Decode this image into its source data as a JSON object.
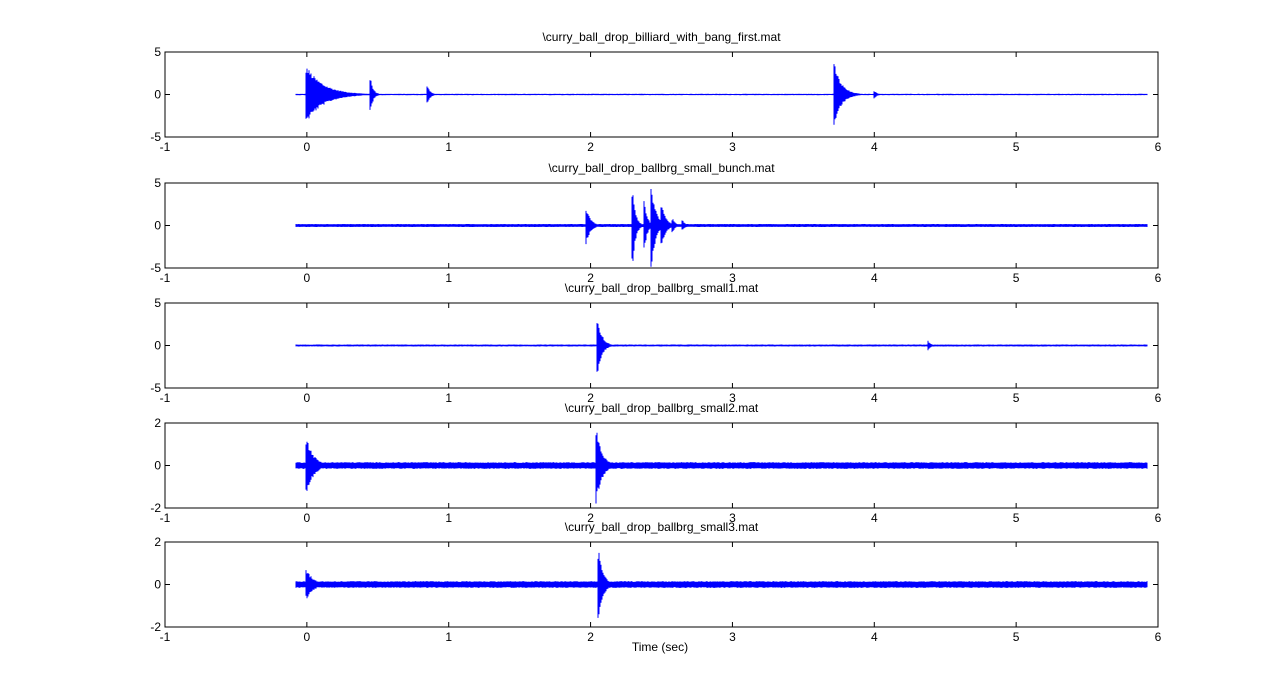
{
  "figure": {
    "xlabel": "Time (sec)"
  },
  "chart_data": [
    {
      "type": "line",
      "title": "\\curry_ball_drop_billiard_with_bang_first.mat",
      "xlim": [
        -1,
        6
      ],
      "ylim": [
        -5,
        5
      ],
      "xticks": [
        "-1",
        "0",
        "1",
        "2",
        "3",
        "4",
        "5",
        "6"
      ],
      "yticks": [
        "5",
        "0",
        "-5"
      ],
      "xlabel": "",
      "ylabel": "",
      "color": "#0000ff",
      "signal_range": [
        -0.08,
        5.92
      ],
      "noise_amplitude": 0.08,
      "events": [
        {
          "t": 0.0,
          "peak": 3.3,
          "decay": 0.12
        },
        {
          "t": 0.45,
          "peak": 1.9,
          "decay": 0.02
        },
        {
          "t": 0.85,
          "peak": 1.2,
          "decay": 0.02
        },
        {
          "t": 3.72,
          "peak": 3.6,
          "decay": 0.05
        },
        {
          "t": 4.0,
          "peak": 0.5,
          "decay": 0.02
        }
      ]
    },
    {
      "type": "line",
      "title": "\\curry_ball_drop_ballbrg_small_bunch.mat",
      "xlim": [
        -1,
        6
      ],
      "ylim": [
        -5,
        5
      ],
      "xticks": [
        "-1",
        "0",
        "1",
        "2",
        "3",
        "4",
        "5",
        "6"
      ],
      "yticks": [
        "5",
        "0",
        "-5"
      ],
      "xlabel": "",
      "ylabel": "",
      "color": "#0000ff",
      "signal_range": [
        -0.08,
        5.92
      ],
      "noise_amplitude": 0.18,
      "events": [
        {
          "t": 1.97,
          "peak": 2.2,
          "decay": 0.03
        },
        {
          "t": 2.3,
          "peak": 4.2,
          "decay": 0.02
        },
        {
          "t": 2.38,
          "peak": 3.0,
          "decay": 0.02
        },
        {
          "t": 2.43,
          "peak": 4.9,
          "decay": 0.03
        },
        {
          "t": 2.5,
          "peak": 2.6,
          "decay": 0.03
        },
        {
          "t": 2.58,
          "peak": 0.8,
          "decay": 0.02
        },
        {
          "t": 2.65,
          "peak": 0.6,
          "decay": 0.02
        }
      ]
    },
    {
      "type": "line",
      "title": "\\curry_ball_drop_ballbrg_small1.mat",
      "xlim": [
        -1,
        6
      ],
      "ylim": [
        -5,
        5
      ],
      "xticks": [
        "-1",
        "0",
        "1",
        "2",
        "3",
        "4",
        "5",
        "6"
      ],
      "yticks": [
        "5",
        "0",
        "-5"
      ],
      "xlabel": "",
      "ylabel": "",
      "color": "#0000ff",
      "signal_range": [
        -0.08,
        5.92
      ],
      "noise_amplitude": 0.12,
      "events": [
        {
          "t": 2.05,
          "peak": 3.5,
          "decay": 0.03
        },
        {
          "t": 4.38,
          "peak": 0.6,
          "decay": 0.02
        }
      ]
    },
    {
      "type": "line",
      "title": "\\curry_ball_drop_ballbrg_small2.mat",
      "xlim": [
        -1,
        6
      ],
      "ylim": [
        -2,
        2
      ],
      "xticks": [
        "-1",
        "0",
        "1",
        "2",
        "3",
        "4",
        "5",
        "6"
      ],
      "yticks": [
        "2",
        "0",
        "-2"
      ],
      "xlabel": "",
      "ylabel": "",
      "color": "#0000ff",
      "signal_range": [
        -0.08,
        5.92
      ],
      "noise_amplitude": 0.16,
      "events": [
        {
          "t": 0.0,
          "peak": 1.3,
          "decay": 0.05
        },
        {
          "t": 2.04,
          "peak": 1.8,
          "decay": 0.04
        }
      ]
    },
    {
      "type": "line",
      "title": "\\curry_ball_drop_ballbrg_small3.mat",
      "xlim": [
        -1,
        6
      ],
      "ylim": [
        -2,
        2
      ],
      "xticks": [
        "-1",
        "0",
        "1",
        "2",
        "3",
        "4",
        "5",
        "6"
      ],
      "yticks": [
        "2",
        "0",
        "-2"
      ],
      "xlabel": "",
      "ylabel": "",
      "color": "#0000ff",
      "signal_range": [
        -0.08,
        5.92
      ],
      "noise_amplitude": 0.16,
      "events": [
        {
          "t": 0.0,
          "peak": 0.7,
          "decay": 0.05
        },
        {
          "t": 2.06,
          "peak": 1.6,
          "decay": 0.03
        }
      ]
    }
  ]
}
